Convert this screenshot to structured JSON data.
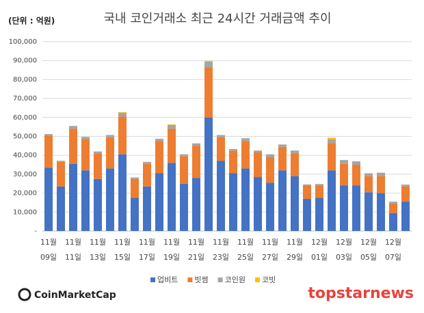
{
  "chart_data": {
    "type": "stacked_bar",
    "title": "국내 코인거래소 최근 24시간 거래금액 추이",
    "unit_label": "(단위 : 억원)",
    "source_logo": "CoinMarketCap",
    "watermark": "topstarnews",
    "categories": [
      "11월\n09일",
      null,
      "11월\n11일",
      null,
      "11월\n13일",
      null,
      "11월\n15일",
      null,
      "11월\n17일",
      null,
      "11월\n19일",
      null,
      "11월\n21일",
      null,
      "11월\n23일",
      null,
      "11월\n25일",
      null,
      "11월\n27일",
      null,
      "11월\n29일",
      null,
      "12월\n01일",
      null,
      "12월\n03일",
      null,
      "12월\n05일",
      null,
      "12월\n07일",
      null
    ],
    "series": [
      {
        "name": "업비트",
        "color": "#4472c4",
        "values": [
          33500,
          23500,
          35500,
          32000,
          27500,
          33000,
          40500,
          17500,
          23500,
          30500,
          36000,
          25000,
          28000,
          60000,
          37000,
          30500,
          33000,
          28500,
          25500,
          32000,
          29000,
          17000,
          17500,
          32000,
          24000,
          24000,
          20500,
          20000,
          9500,
          15500
        ]
      },
      {
        "name": "빗썸",
        "color": "#ed7d31",
        "values": [
          17000,
          13000,
          18500,
          16500,
          13500,
          16500,
          20000,
          10000,
          12000,
          17000,
          18000,
          14500,
          17000,
          26500,
          12500,
          12000,
          14500,
          13000,
          13500,
          12500,
          12000,
          7000,
          6500,
          14500,
          11500,
          11000,
          8500,
          9000,
          5000,
          8000
        ]
      },
      {
        "name": "코인원",
        "color": "#a5a5a5",
        "values": [
          700,
          600,
          1500,
          1200,
          1000,
          1200,
          2000,
          800,
          1000,
          1200,
          2000,
          1000,
          1300,
          3000,
          1200,
          800,
          1500,
          1000,
          1500,
          1200,
          1500,
          600,
          800,
          2000,
          2000,
          1800,
          1500,
          1800,
          1000,
          1000
        ]
      },
      {
        "name": "코빗",
        "color": "#ffc000",
        "values": [
          0,
          0,
          0,
          0,
          0,
          0,
          300,
          0,
          0,
          0,
          300,
          0,
          0,
          300,
          0,
          0,
          0,
          0,
          0,
          0,
          0,
          0,
          0,
          800,
          0,
          0,
          0,
          0,
          0,
          0
        ]
      }
    ],
    "ylim": [
      0,
      100000
    ],
    "yticks": [
      {
        "value": 0,
        "label": "-"
      },
      {
        "value": 10000,
        "label": "10,000"
      },
      {
        "value": 20000,
        "label": "20,000"
      },
      {
        "value": 30000,
        "label": "30,000"
      },
      {
        "value": 40000,
        "label": "40,000"
      },
      {
        "value": 50000,
        "label": "50,000"
      },
      {
        "value": 60000,
        "label": "60,000"
      },
      {
        "value": 70000,
        "label": "70,000"
      },
      {
        "value": 80000,
        "label": "80,000"
      },
      {
        "value": 90000,
        "label": "90,000"
      },
      {
        "value": 100000,
        "label": "100,000"
      }
    ],
    "grid": true
  }
}
